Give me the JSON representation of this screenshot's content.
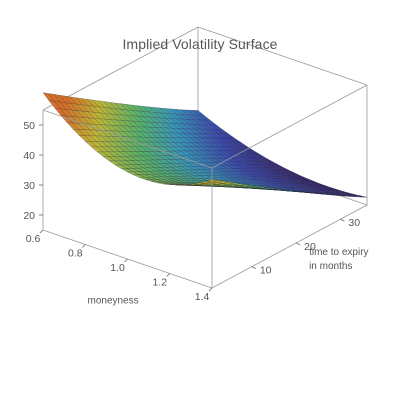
{
  "chart_data": {
    "type": "surface3d",
    "title": "Implied Volatility Surface",
    "x_axis": {
      "label": "moneyness",
      "range": [
        0.6,
        1.4
      ],
      "ticks": [
        0.6,
        0.8,
        1.0,
        1.2,
        1.4
      ],
      "tick_labels": [
        "0.6",
        "0.8",
        "1.0",
        "1.2",
        "1.4"
      ]
    },
    "y_axis": {
      "label": "time to expiry\nin months",
      "label_lines": [
        "time to expiry",
        "in months"
      ],
      "range": [
        1,
        36
      ],
      "ticks": [
        10,
        20,
        30
      ],
      "tick_labels": [
        "10",
        "20",
        "30"
      ]
    },
    "z_axis": {
      "label": "",
      "range": [
        15,
        55
      ],
      "ticks": [
        20,
        30,
        40,
        50
      ],
      "tick_labels": [
        "20",
        "30",
        "40",
        "50"
      ]
    },
    "corner_values": [
      {
        "moneyness": 0.6,
        "months": 1,
        "vol": 54
      },
      {
        "moneyness": 1.4,
        "months": 1,
        "vol": 43
      },
      {
        "moneyness": 0.6,
        "months": 36,
        "vol": 21
      },
      {
        "moneyness": 1.4,
        "months": 36,
        "vol": 15
      }
    ],
    "min_vol_point": {
      "moneyness": 1.0,
      "months": 36,
      "vol": 14
    },
    "colormap": "rainbow",
    "colormap_stops": [
      "#3a2a6e",
      "#3f4fb8",
      "#3ba0c8",
      "#5fbf6e",
      "#c9c23a",
      "#e0742a"
    ],
    "mesh_lines": true,
    "box": true
  }
}
